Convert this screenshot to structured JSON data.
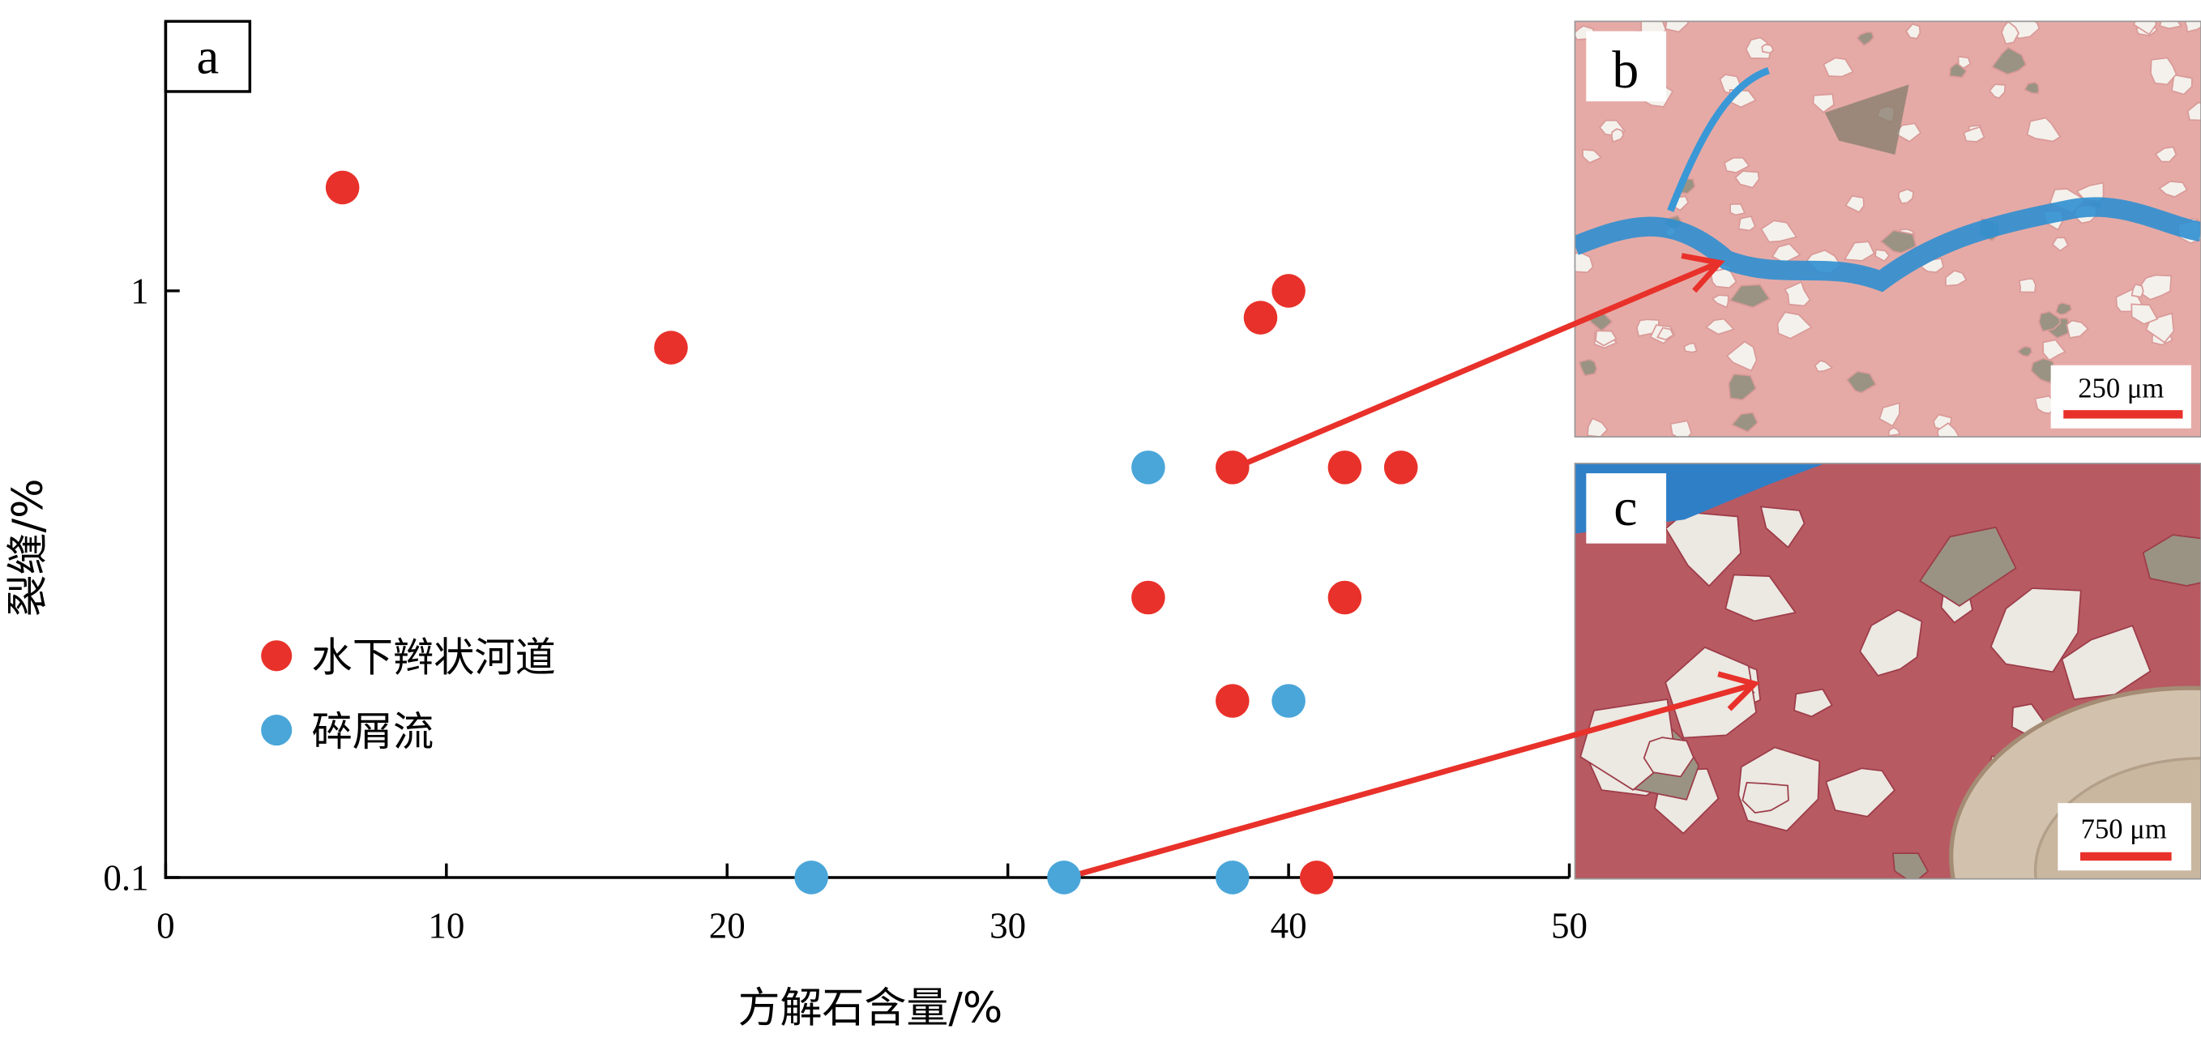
{
  "chart_data": {
    "type": "scatter",
    "panel_label": "a",
    "xlabel": "方解石含量/%",
    "ylabel": "裂缝/%",
    "xlim": [
      0,
      50
    ],
    "ylim": [
      0.1,
      1.6
    ],
    "y_scale": "log",
    "x_ticks": [
      "0",
      "10",
      "20",
      "30",
      "40",
      "50"
    ],
    "y_ticks": [
      "0.1",
      "1"
    ],
    "grid": false,
    "legend_position": "center-left",
    "series": [
      {
        "name": "水下辫状河道",
        "color": "#e8312a",
        "points": [
          [
            6.3,
            1.5
          ],
          [
            18,
            0.8
          ],
          [
            39,
            0.9
          ],
          [
            40,
            1.0
          ],
          [
            38,
            0.5
          ],
          [
            42,
            0.5
          ],
          [
            44,
            0.5
          ],
          [
            35,
            0.3
          ],
          [
            42,
            0.3
          ],
          [
            38,
            0.2
          ],
          [
            41,
            0.1
          ]
        ]
      },
      {
        "name": "碎屑流",
        "color": "#4aa6d9",
        "points": [
          [
            35,
            0.5
          ],
          [
            40,
            0.2
          ],
          [
            23,
            0.1
          ],
          [
            32,
            0.1
          ],
          [
            38,
            0.1
          ]
        ]
      }
    ],
    "annotations": [
      {
        "from_point": [
          38,
          0.5
        ],
        "to_panel": "b"
      },
      {
        "from_point": [
          32,
          0.1
        ],
        "to_panel": "c"
      }
    ]
  },
  "micrographs": [
    {
      "label": "b",
      "scale_bar": "250 μm"
    },
    {
      "label": "c",
      "scale_bar": "750 μm"
    }
  ],
  "colors": {
    "arrow": "#e8312a",
    "stain_pink": "#e8a7a4",
    "pore_blue": "#2f8fd0"
  }
}
